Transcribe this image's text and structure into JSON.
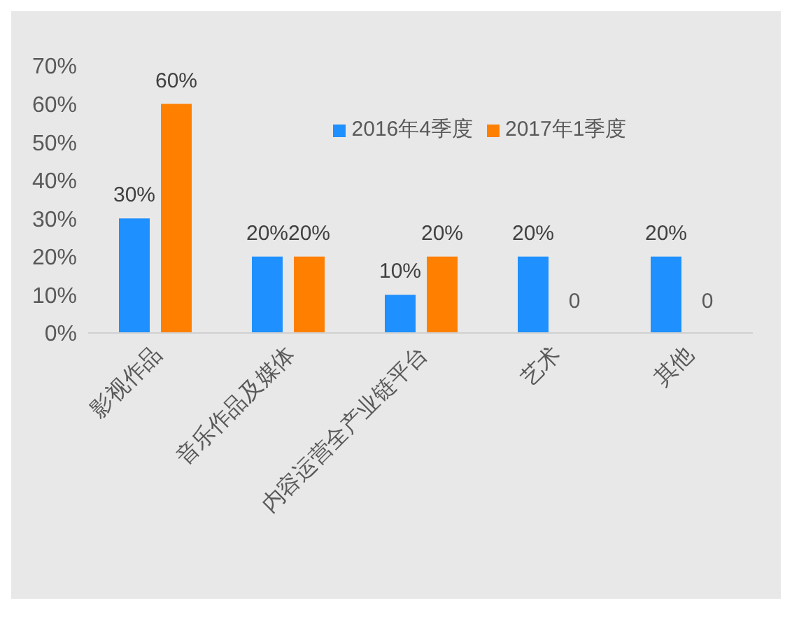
{
  "chart_data": {
    "type": "bar",
    "categories": [
      "影视作品",
      "音乐作品及媒体",
      "内容运营全产业链平台",
      "艺术",
      "其他"
    ],
    "series": [
      {
        "name": "2016年4季度",
        "color": "#1e90ff",
        "values": [
          30,
          20,
          10,
          20,
          20
        ],
        "value_labels": [
          "30%",
          "20%",
          "10%",
          "20%",
          "20%"
        ]
      },
      {
        "name": "2017年1季度",
        "color": "#ff8000",
        "values": [
          60,
          20,
          20,
          0,
          0
        ],
        "value_labels": [
          "60%",
          "20%",
          "20%",
          "0",
          "0"
        ]
      }
    ],
    "ylim": [
      0,
      70
    ],
    "yticks": [
      {
        "value": 0,
        "label": "0%"
      },
      {
        "value": 10,
        "label": "10%"
      },
      {
        "value": 20,
        "label": "20%"
      },
      {
        "value": 30,
        "label": "30%"
      },
      {
        "value": 40,
        "label": "40%"
      },
      {
        "value": 50,
        "label": "50%"
      },
      {
        "value": 60,
        "label": "60%"
      },
      {
        "value": 70,
        "label": "70%"
      }
    ],
    "grid": false,
    "legend": "top"
  }
}
